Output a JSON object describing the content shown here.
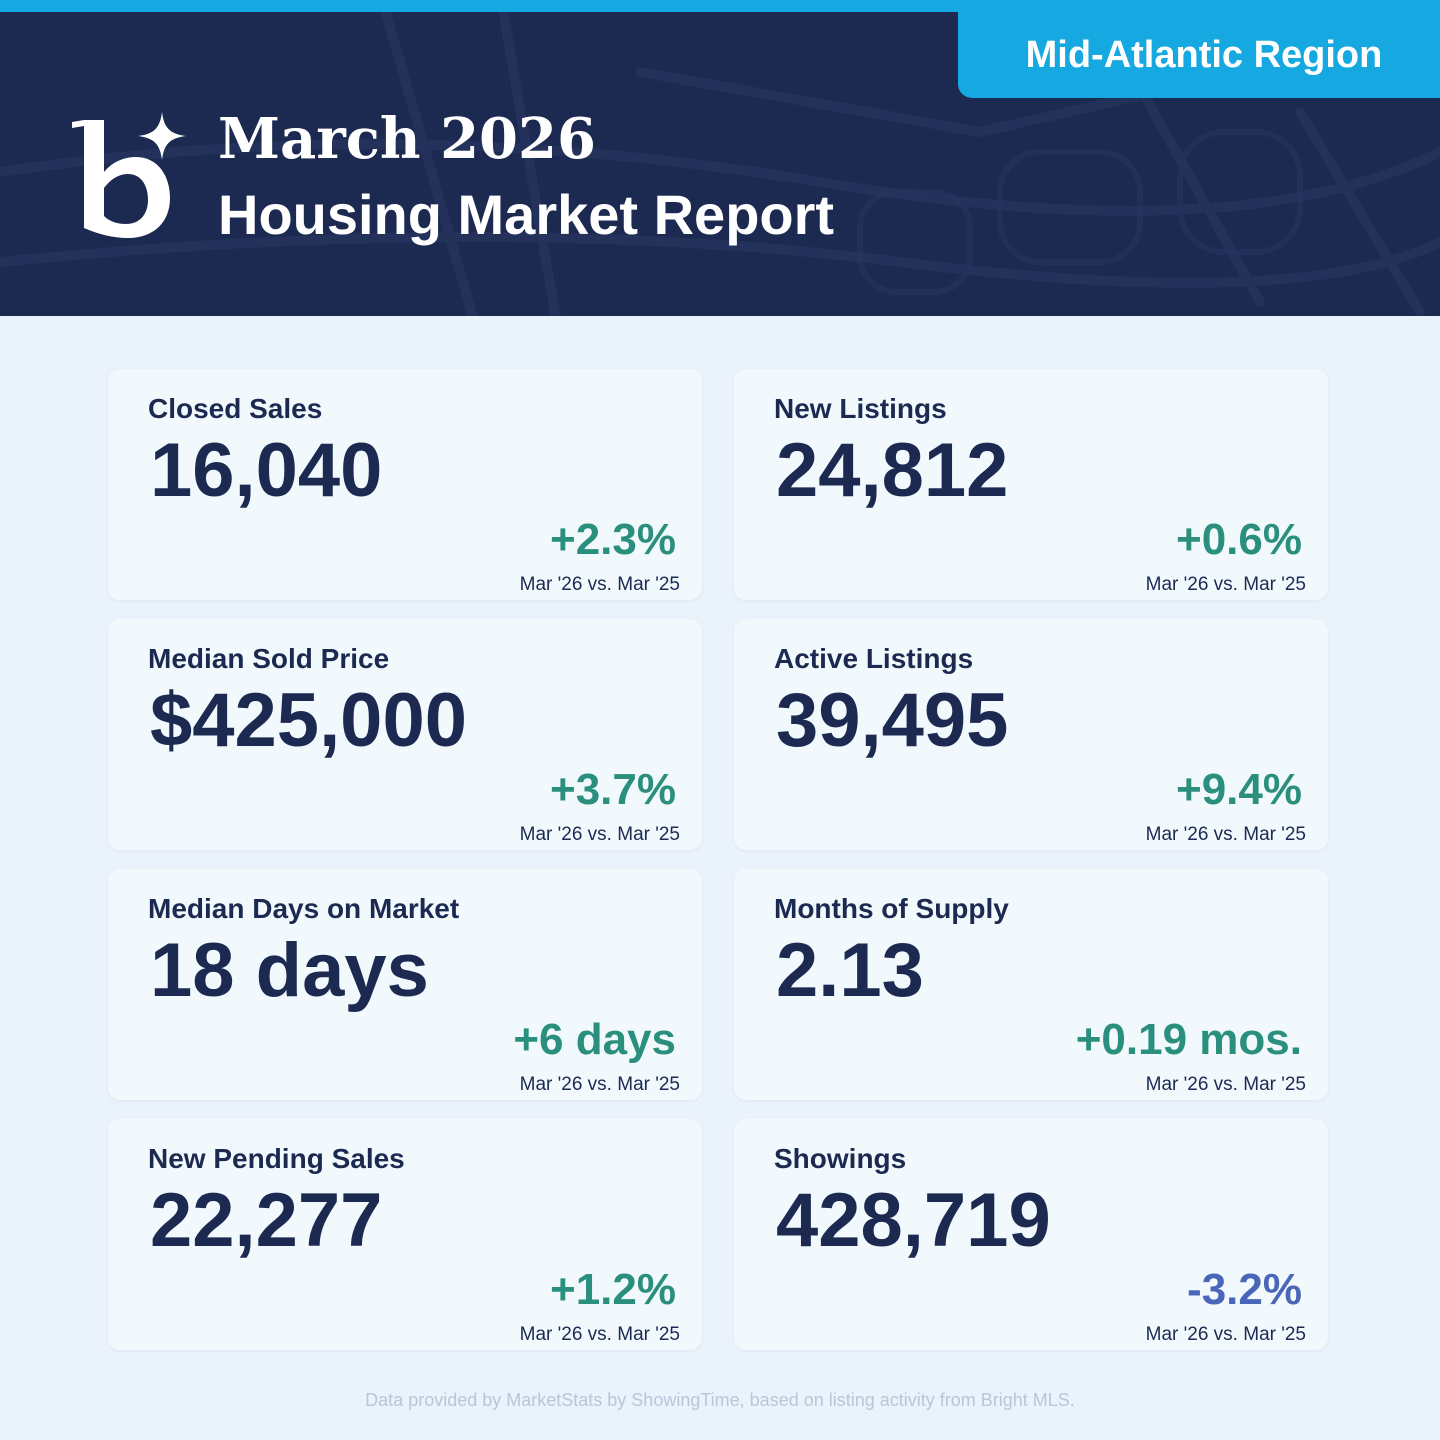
{
  "header": {
    "region_label": "Mid-Atlantic Region",
    "title_line1": "March 2026",
    "title_line2": "Housing Market Report",
    "colors": {
      "navy": "#1c2a52",
      "accent_blue": "#16a8e0",
      "positive": "#2b8f7e",
      "negative": "#4a66b8"
    }
  },
  "metrics": [
    {
      "label": "Closed Sales",
      "value": "16,040",
      "change": "+2.3%",
      "direction": "positive",
      "comparison": "Mar '26 vs. Mar '25"
    },
    {
      "label": "New Listings",
      "value": "24,812",
      "change": "+0.6%",
      "direction": "positive",
      "comparison": "Mar '26 vs. Mar '25"
    },
    {
      "label": "Median Sold Price",
      "value": "$425,000",
      "change": "+3.7%",
      "direction": "positive",
      "comparison": "Mar '26 vs. Mar '25"
    },
    {
      "label": "Active Listings",
      "value": "39,495",
      "change": "+9.4%",
      "direction": "positive",
      "comparison": "Mar '26 vs. Mar '25"
    },
    {
      "label": "Median Days on Market",
      "value": "18 days",
      "change": "+6 days",
      "direction": "positive",
      "comparison": "Mar '26 vs. Mar '25"
    },
    {
      "label": "Months of Supply",
      "value": "2.13",
      "change": "+0.19 mos.",
      "direction": "positive",
      "comparison": "Mar '26 vs. Mar '25"
    },
    {
      "label": "New Pending Sales",
      "value": "22,277",
      "change": "+1.2%",
      "direction": "positive",
      "comparison": "Mar '26 vs. Mar '25"
    },
    {
      "label": "Showings",
      "value": "428,719",
      "change": "-3.2%",
      "direction": "negative",
      "comparison": "Mar '26 vs. Mar '25"
    }
  ],
  "footer": {
    "source_note": "Data provided by MarketStats by ShowingTime, based on listing activity from Bright MLS."
  }
}
